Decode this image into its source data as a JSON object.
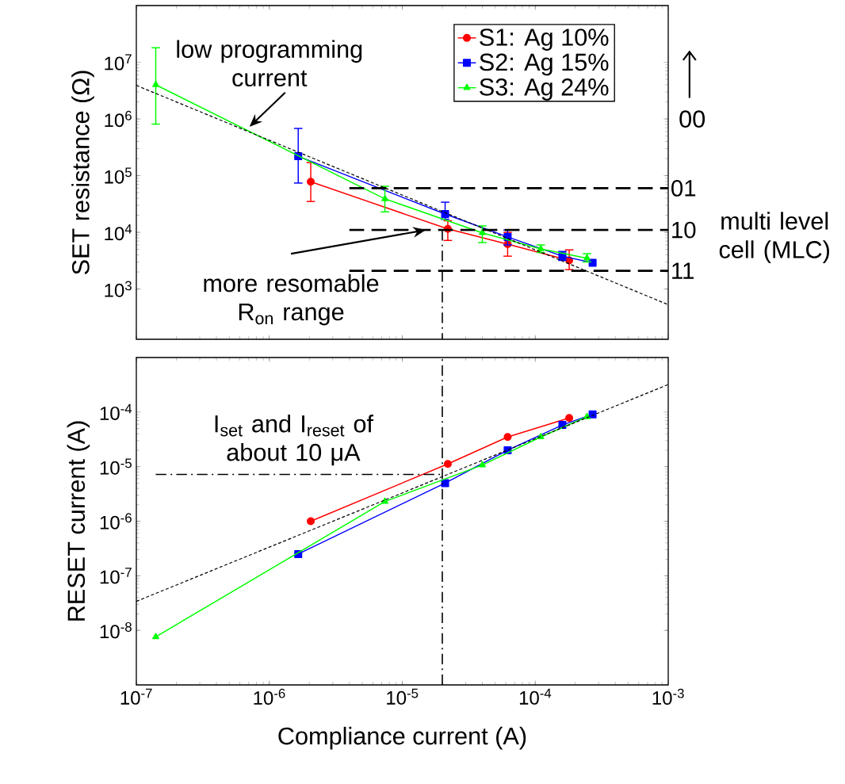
{
  "chart_data": [
    {
      "type": "line",
      "ylabel": "SET resistance (Ω)",
      "log": "xy",
      "legend": "top right",
      "tick_labels": "y",
      "xlim": [
        1e-07,
        0.001
      ],
      "ylim": [
        130,
        100000000.0
      ],
      "xticks": [
        {
          "value": 1e-07,
          "label": null
        },
        {
          "value": 1e-06,
          "label": null
        },
        {
          "value": 1e-05,
          "label": null
        },
        {
          "value": 0.0001,
          "label": null
        },
        {
          "value": 0.001,
          "label": null
        }
      ],
      "yticks": [
        {
          "value": 1000.0,
          "label": "10$^{3}$"
        },
        {
          "value": 10000.0,
          "label": "10$^{4}$"
        },
        {
          "value": 100000.0,
          "label": "10$^{5}$"
        },
        {
          "value": 1000000.0,
          "label": "10$^{6}$"
        },
        {
          "value": 10000000.0,
          "label": "10$^{7}$"
        }
      ],
      "series": [
        {
          "name": "S1: Ag 10%",
          "color": "#ff0000",
          "marker": "circle",
          "x": [
            2.05e-06,
            2.2e-05,
            6.2e-05,
            0.00018
          ],
          "values": [
            78000,
            11500,
            6200,
            3200
          ],
          "errors": [
            [
              35000,
              170000
            ],
            [
              7200,
              16000
            ],
            [
              3800,
              10000
            ],
            [
              2200,
              4900
            ]
          ]
        },
        {
          "name": "S2: Ag 15%",
          "color": "#0000ff",
          "marker": "square",
          "x": [
            1.65e-06,
            2.1e-05,
            6.2e-05,
            0.00016,
            0.00027
          ],
          "values": [
            220000,
            21000,
            8300,
            3800,
            2900
          ],
          "errors": [
            [
              74000,
              680000
            ],
            [
              17000,
              34000
            ],
            [
              6000,
              11000
            ],
            [
              3200,
              4600
            ],
            null
          ]
        },
        {
          "name": "S3: Ag 24%",
          "color": "#00ff00",
          "marker": "triangle",
          "x": [
            1.4e-07,
            7.4e-06,
            4e-05,
            0.00011,
            0.000245
          ],
          "values": [
            4000000,
            39000,
            9800,
            5100,
            3500
          ],
          "errors": [
            [
              810000,
              18000000
            ],
            [
              23000,
              65000
            ],
            [
              6600,
              13000
            ],
            [
              4400,
              6000
            ],
            [
              3000,
              4200
            ]
          ]
        },
        {
          "color": "#000000",
          "line_style": "dotted",
          "x": [
            1e-07,
            0.001
          ],
          "values": [
            3900000,
            530
          ]
        },
        {
          "color": "#000000",
          "line_style": "dashed",
          "x": [
            4e-06,
            0.001
          ],
          "values": [
            60000,
            60000
          ]
        },
        {
          "color": "#000000",
          "line_style": "dashed",
          "x": [
            4e-06,
            0.001
          ],
          "values": [
            11000,
            11000
          ]
        },
        {
          "color": "#000000",
          "line_style": "dashed",
          "x": [
            4e-06,
            0.001
          ],
          "values": [
            2100,
            2100
          ]
        },
        {
          "color": "#000000",
          "line_style": "dashdot",
          "x": [
            2e-05,
            2e-05
          ],
          "values": [
            11000,
            130
          ]
        }
      ],
      "annotations": [
        {
          "text": "low programming current",
          "x": 7.1e-07,
          "y": 730000
        },
        {
          "text": "more resomable R$_{on}$ range",
          "x": 1.5e-05,
          "y": 11000
        },
        "00",
        {
          "text": "01",
          "x": 0.001,
          "y": 60000
        },
        {
          "text": "10",
          "x": 0.001,
          "y": 11000
        },
        {
          "text": "11",
          "x": 0.001,
          "y": 2100
        },
        "multi level cell (MLC)"
      ]
    },
    {
      "type": "line",
      "xlabel": "Compliance current (A)",
      "ylabel": "RESET current (A)",
      "log": "xy",
      "xlim": [
        1e-07,
        0.001
      ],
      "ylim": [
        1e-09,
        0.001
      ],
      "xticks": [
        {
          "value": 1e-07,
          "label": "10$^{-7}$"
        },
        {
          "value": 1e-06,
          "label": "10$^{-6}$"
        },
        {
          "value": 1e-05,
          "label": "10$^{-5}$"
        },
        {
          "value": 0.0001,
          "label": "10$^{-4}$"
        },
        {
          "value": 0.001,
          "label": "10$^{-3}$"
        }
      ],
      "yticks": [
        {
          "value": 1e-08,
          "label": "10$^{-8}$"
        },
        {
          "value": 1e-07,
          "label": "10$^{-7}$"
        },
        {
          "value": 1e-06,
          "label": "10$^{-6}$"
        },
        {
          "value": 1e-05,
          "label": "10$^{-5}$"
        },
        {
          "value": 0.0001,
          "label": "10$^{-4}$"
        }
      ],
      "series": [
        {
          "color": "#ff0000",
          "marker": "circle",
          "x": [
            2.05e-06,
            2.2e-05,
            6.2e-05,
            0.00018
          ],
          "values": [
            1e-06,
            1.12e-05,
            3.5e-05,
            7.8e-05
          ]
        },
        {
          "color": "#0000ff",
          "marker": "square",
          "x": [
            1.65e-06,
            2.1e-05,
            6.2e-05,
            0.00016,
            0.00027
          ],
          "values": [
            2.5e-07,
            5e-06,
            2e-05,
            5.8e-05,
            9.1e-05
          ]
        },
        {
          "color": "#00ff00",
          "marker": "triangle",
          "x": [
            1.4e-07,
            7.4e-06,
            4e-05,
            0.00011,
            0.000245
          ],
          "values": [
            7.6e-09,
            2.3e-06,
            1.07e-05,
            3.5e-05,
            8.2e-05
          ]
        },
        {
          "color": "#000000",
          "line_style": "dotted",
          "x": [
            1e-07,
            0.001
          ],
          "values": [
            3.4e-08,
            0.00032
          ]
        },
        {
          "color": "#000000",
          "line_style": "dashdot",
          "x": [
            1.4e-07,
            2e-05
          ],
          "values": [
            7.2e-06,
            7.2e-06
          ]
        }
      ],
      "ref_lines": [
        {
          "axis": "x",
          "value": 2e-05,
          "line_style": "dashdot"
        }
      ],
      "annotations": [
        "I$_{set}$ and I$_{reset}$ of about 10 μA"
      ]
    }
  ]
}
